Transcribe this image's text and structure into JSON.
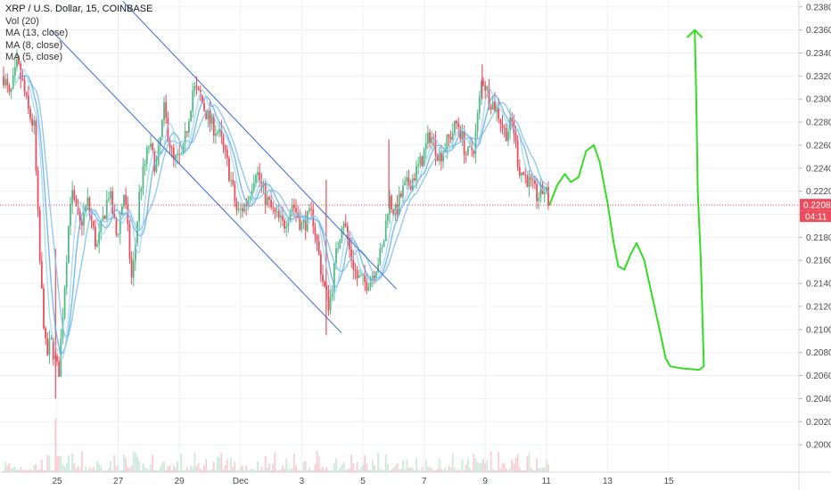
{
  "legend": {
    "title": "XRP / U.S. Dollar, 15, COINBASE",
    "vol": "Vol (20)",
    "ma1": "MA (13, close)",
    "ma2": "MA (8, close)",
    "ma3": "MA (5, close)"
  },
  "price_badge": "0.2208",
  "countdown_badge": "04:11",
  "colors": {
    "up": "#53b987",
    "down": "#eb4d5c",
    "ma": "#87c4ec",
    "channel": "#3a66d8",
    "projection": "#33dd22",
    "price_line": "#eb4d5c",
    "grid": "#edf0f4",
    "axis_text": "#4a4a4a"
  },
  "chart_data": {
    "type": "candlestick",
    "title": "XRP / U.S. Dollar, 15, COINBASE",
    "ylim": [
      0.198,
      0.2386
    ],
    "y_ticks": [
      "0.2000",
      "0.2020",
      "0.2040",
      "0.2060",
      "0.2080",
      "0.2100",
      "0.2120",
      "0.2140",
      "0.2160",
      "0.2180",
      "0.2200",
      "0.2220",
      "0.2240",
      "0.2260",
      "0.2280",
      "0.2300",
      "0.2320",
      "0.2340",
      "0.2360",
      "0.2380"
    ],
    "x_ticks": [
      {
        "label": "25",
        "day": 0
      },
      {
        "label": "27",
        "day": 2
      },
      {
        "label": "29",
        "day": 4
      },
      {
        "label": "Dec",
        "day": 6
      },
      {
        "label": "3",
        "day": 8
      },
      {
        "label": "5",
        "day": 10
      },
      {
        "label": "7",
        "day": 12
      },
      {
        "label": "9",
        "day": 14
      },
      {
        "label": "11",
        "day": 16
      },
      {
        "label": "13",
        "day": 18
      },
      {
        "label": "15",
        "day": 20
      }
    ],
    "last_price": 0.2208,
    "price_path": [
      [
        -1.75,
        0.232
      ],
      [
        -1.55,
        0.23
      ],
      [
        -1.3,
        0.233
      ],
      [
        -1.1,
        0.231
      ],
      [
        -0.95,
        0.229
      ],
      [
        -0.75,
        0.2275
      ],
      [
        -0.55,
        0.215
      ],
      [
        -0.35,
        0.2075
      ],
      [
        -0.2,
        0.209
      ],
      [
        0.05,
        0.206
      ],
      [
        0.25,
        0.214
      ],
      [
        0.45,
        0.222
      ],
      [
        0.75,
        0.219
      ],
      [
        1.0,
        0.221
      ],
      [
        1.3,
        0.217
      ],
      [
        1.7,
        0.222
      ],
      [
        1.95,
        0.218
      ],
      [
        2.2,
        0.222
      ],
      [
        2.45,
        0.214
      ],
      [
        2.7,
        0.222
      ],
      [
        3.0,
        0.226
      ],
      [
        3.25,
        0.224
      ],
      [
        3.5,
        0.229
      ],
      [
        3.8,
        0.2245
      ],
      [
        4.1,
        0.225
      ],
      [
        4.45,
        0.231
      ],
      [
        4.7,
        0.23
      ],
      [
        5.0,
        0.228
      ],
      [
        5.3,
        0.227
      ],
      [
        5.6,
        0.224
      ],
      [
        5.9,
        0.22
      ],
      [
        6.2,
        0.221
      ],
      [
        6.5,
        0.224
      ],
      [
        6.8,
        0.2215
      ],
      [
        7.1,
        0.22
      ],
      [
        7.4,
        0.219
      ],
      [
        7.7,
        0.221
      ],
      [
        8.0,
        0.219
      ],
      [
        8.35,
        0.22
      ],
      [
        8.7,
        0.214
      ],
      [
        8.9,
        0.212
      ],
      [
        9.1,
        0.216
      ],
      [
        9.35,
        0.22
      ],
      [
        9.55,
        0.217
      ],
      [
        9.8,
        0.2145
      ],
      [
        10.1,
        0.214
      ],
      [
        10.35,
        0.215
      ],
      [
        10.65,
        0.217
      ],
      [
        10.85,
        0.2215
      ],
      [
        11.05,
        0.22
      ],
      [
        11.3,
        0.222
      ],
      [
        11.6,
        0.223
      ],
      [
        11.9,
        0.2245
      ],
      [
        12.2,
        0.227
      ],
      [
        12.5,
        0.225
      ],
      [
        12.8,
        0.2265
      ],
      [
        13.1,
        0.228
      ],
      [
        13.4,
        0.225
      ],
      [
        13.65,
        0.226
      ],
      [
        13.9,
        0.232
      ],
      [
        14.15,
        0.23
      ],
      [
        14.4,
        0.229
      ],
      [
        14.65,
        0.227
      ],
      [
        14.9,
        0.228
      ],
      [
        15.1,
        0.224
      ],
      [
        15.4,
        0.223
      ],
      [
        15.7,
        0.2215
      ],
      [
        15.95,
        0.2222
      ],
      [
        16.1,
        0.2208
      ]
    ],
    "spikes": [
      {
        "day": -0.05,
        "high": 0.217,
        "low": 0.204
      },
      {
        "day": 8.8,
        "high": 0.223,
        "low": 0.2095
      },
      {
        "day": 10.85,
        "high": 0.2265,
        "low": 0.2205
      },
      {
        "day": 13.9,
        "high": 0.233,
        "low": 0.23
      }
    ],
    "trend_channel": [
      {
        "from": [
          2.15,
          0.2385
        ],
        "to": [
          11.1,
          0.2135
        ]
      },
      {
        "from": [
          -0.2,
          0.236
        ],
        "to": [
          9.3,
          0.2097
        ]
      }
    ],
    "projection": [
      [
        16.1,
        0.2208
      ],
      [
        16.35,
        0.2225
      ],
      [
        16.6,
        0.2235
      ],
      [
        16.8,
        0.2228
      ],
      [
        17.05,
        0.2232
      ],
      [
        17.3,
        0.2255
      ],
      [
        17.55,
        0.226
      ],
      [
        17.75,
        0.2245
      ],
      [
        18.0,
        0.221
      ],
      [
        18.2,
        0.2175
      ],
      [
        18.35,
        0.2155
      ],
      [
        18.55,
        0.2152
      ],
      [
        18.75,
        0.2165
      ],
      [
        18.95,
        0.2175
      ],
      [
        19.2,
        0.216
      ],
      [
        19.45,
        0.213
      ],
      [
        19.7,
        0.21
      ],
      [
        19.9,
        0.2075
      ],
      [
        20.05,
        0.2068
      ],
      [
        20.5,
        0.2066
      ],
      [
        21.0,
        0.2065
      ],
      [
        21.15,
        0.2068
      ],
      [
        21.05,
        0.216
      ],
      [
        20.95,
        0.222
      ],
      [
        20.9,
        0.23
      ],
      [
        20.85,
        0.236
      ]
    ]
  }
}
